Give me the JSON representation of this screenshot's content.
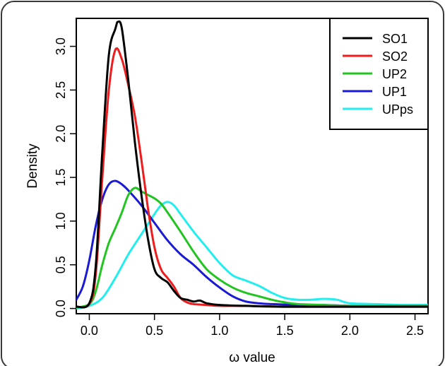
{
  "chart_data": {
    "type": "line",
    "title": "",
    "xlabel": "ω value",
    "ylabel": "Density",
    "xlim": [
      -0.1,
      2.6
    ],
    "ylim": [
      -0.06,
      3.32
    ],
    "x_ticks": [
      0.0,
      0.5,
      1.0,
      1.5,
      2.0,
      2.5
    ],
    "x_tick_labels": [
      "0.0",
      "0.5",
      "1.0",
      "1.5",
      "2.0",
      "2.5"
    ],
    "y_ticks": [
      0.0,
      0.5,
      1.0,
      1.5,
      2.0,
      2.5,
      3.0
    ],
    "y_tick_labels": [
      "0.0",
      "0.5",
      "1.0",
      "1.5",
      "2.0",
      "2.5",
      "3.0"
    ],
    "grid": false,
    "legend_position": "top-right",
    "series": [
      {
        "name": "SO1",
        "color": "#000000",
        "x": [
          -0.1,
          0.0,
          0.05,
          0.1,
          0.15,
          0.2,
          0.22,
          0.25,
          0.3,
          0.35,
          0.4,
          0.45,
          0.5,
          0.55,
          0.6,
          0.65,
          0.7,
          0.75,
          0.8,
          0.85,
          0.9,
          1.0,
          1.2,
          1.5,
          2.0,
          2.6
        ],
        "y": [
          0.02,
          0.06,
          0.5,
          1.8,
          2.9,
          3.2,
          3.28,
          3.2,
          2.6,
          1.9,
          1.3,
          0.8,
          0.45,
          0.35,
          0.3,
          0.2,
          0.12,
          0.1,
          0.08,
          0.09,
          0.06,
          0.04,
          0.03,
          0.02,
          0.02,
          0.02
        ]
      },
      {
        "name": "SO2",
        "color": "#ee1c1c",
        "x": [
          -0.1,
          0.0,
          0.05,
          0.1,
          0.15,
          0.2,
          0.25,
          0.3,
          0.35,
          0.4,
          0.45,
          0.5,
          0.55,
          0.6,
          0.65,
          0.7,
          0.75,
          0.8,
          0.9,
          1.0,
          1.2,
          1.5,
          2.0,
          2.6
        ],
        "y": [
          0.02,
          0.05,
          0.4,
          1.5,
          2.5,
          2.96,
          2.85,
          2.55,
          2.2,
          1.7,
          1.15,
          0.7,
          0.45,
          0.35,
          0.25,
          0.12,
          0.07,
          0.05,
          0.04,
          0.03,
          0.03,
          0.02,
          0.02,
          0.02
        ]
      },
      {
        "name": "UP2",
        "color": "#22c422",
        "x": [
          -0.1,
          0.0,
          0.05,
          0.1,
          0.15,
          0.2,
          0.25,
          0.3,
          0.35,
          0.4,
          0.45,
          0.5,
          0.55,
          0.6,
          0.7,
          0.8,
          0.9,
          1.0,
          1.1,
          1.2,
          1.3,
          1.4,
          1.5,
          1.6,
          1.8,
          2.0,
          2.3,
          2.6
        ],
        "y": [
          0.01,
          0.05,
          0.2,
          0.5,
          0.75,
          0.92,
          1.1,
          1.3,
          1.38,
          1.34,
          1.3,
          1.26,
          1.2,
          1.1,
          0.88,
          0.65,
          0.45,
          0.33,
          0.24,
          0.18,
          0.14,
          0.1,
          0.07,
          0.05,
          0.04,
          0.03,
          0.03,
          0.03
        ]
      },
      {
        "name": "UP1",
        "color": "#1a1ad4",
        "x": [
          -0.1,
          -0.05,
          0.0,
          0.05,
          0.1,
          0.15,
          0.2,
          0.25,
          0.3,
          0.4,
          0.5,
          0.6,
          0.7,
          0.8,
          0.9,
          1.0,
          1.1,
          1.2,
          1.3,
          1.4,
          1.6,
          1.8,
          2.0,
          2.3,
          2.6
        ],
        "y": [
          0.1,
          0.25,
          0.55,
          0.95,
          1.25,
          1.42,
          1.46,
          1.42,
          1.35,
          1.18,
          0.98,
          0.78,
          0.62,
          0.5,
          0.36,
          0.24,
          0.14,
          0.08,
          0.06,
          0.05,
          0.04,
          0.04,
          0.03,
          0.03,
          0.03
        ]
      },
      {
        "name": "UPps",
        "color": "#22eeee",
        "x": [
          -0.1,
          0.0,
          0.1,
          0.2,
          0.3,
          0.4,
          0.5,
          0.55,
          0.6,
          0.65,
          0.7,
          0.8,
          0.9,
          1.0,
          1.1,
          1.2,
          1.3,
          1.4,
          1.5,
          1.6,
          1.7,
          1.8,
          1.9,
          2.0,
          2.2,
          2.4,
          2.6
        ],
        "y": [
          0.0,
          0.03,
          0.12,
          0.35,
          0.62,
          0.85,
          1.08,
          1.18,
          1.22,
          1.18,
          1.08,
          0.88,
          0.7,
          0.52,
          0.38,
          0.32,
          0.26,
          0.18,
          0.12,
          0.1,
          0.1,
          0.11,
          0.1,
          0.06,
          0.05,
          0.04,
          0.04
        ]
      }
    ]
  }
}
